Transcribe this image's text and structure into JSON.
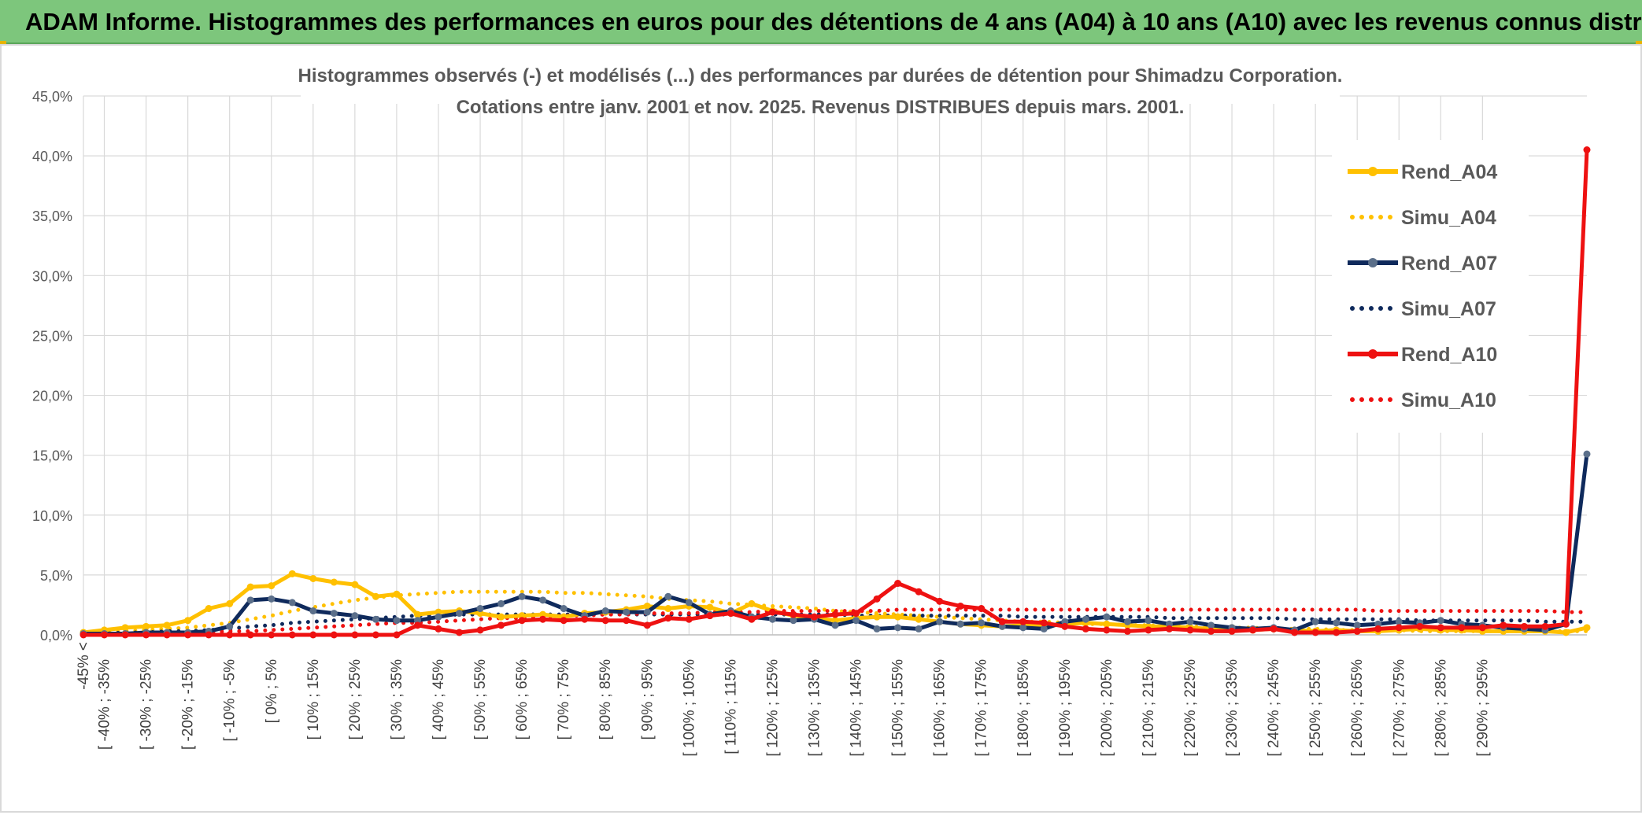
{
  "banner": {
    "title": "ADAM Informe. Histogrammes des performances en euros pour des détentions de 4 ans (A04) à 10 ans (A10) avec les revenus connus distribués"
  },
  "colors": {
    "banner_bg": "#7dc67c",
    "a04": "#ffc000",
    "a07": "#0f2a5c",
    "a10": "#ee1111",
    "grid": "#d9d9d9"
  },
  "chart_data": {
    "type": "line",
    "title_line1": "Histogrammes observés (-) et modélisés (...) des performances par durées de détention pour Shimadzu Corporation.",
    "title_line2": "Cotations entre janv. 2001 et nov. 2025. Revenus DISTRIBUES depuis mars. 2001.",
    "xlabel": "",
    "ylabel": "",
    "ylim": [
      0,
      45
    ],
    "y_ticks": [
      "0,0%",
      "5,0%",
      "10,0%",
      "15,0%",
      "20,0%",
      "25,0%",
      "30,0%",
      "35,0%",
      "40,0%",
      "45,0%"
    ],
    "grid": true,
    "legend_position": "right",
    "x_tick_labels": [
      "-45% <",
      "[ -40% ; -35%",
      "[ -30% ; -25%",
      "[ -20% ; -15%",
      "[ -10% ; -5%",
      "[ 0% ; 5%",
      "[ 10% ; 15%",
      "[ 20% ; 25%",
      "[ 30% ; 35%",
      "[ 40% ; 45%",
      "[ 50% ; 55%",
      "[ 60% ; 65%",
      "[ 70% ; 75%",
      "[ 80% ; 85%",
      "[ 90% ; 95%",
      "[ 100% ; 105%",
      "[ 110% ; 115%",
      "[ 120% ; 125%",
      "[ 130% ; 135%",
      "[ 140% ; 145%",
      "[ 150% ; 155%",
      "[ 160% ; 165%",
      "[ 170% ; 175%",
      "[ 180% ; 185%",
      "[ 190% ; 195%",
      "[ 200% ; 205%",
      "[ 210% ; 215%",
      "[ 220% ; 225%",
      "[ 230% ; 235%",
      "[ 240% ; 245%",
      "[ 250% ; 255%",
      "[ 260% ; 265%",
      "[ 270% ; 275%",
      "[ 280% ; 285%",
      "[ 290% ; 295%"
    ],
    "series": [
      {
        "name": "Rend_A04",
        "style": "solid-markers",
        "color": "#ffc000",
        "values": [
          0.2,
          0.4,
          0.6,
          0.7,
          0.8,
          1.2,
          2.2,
          2.6,
          4.0,
          4.1,
          5.1,
          4.7,
          4.4,
          4.2,
          3.2,
          3.4,
          1.7,
          1.9,
          2.0,
          1.8,
          1.5,
          1.6,
          1.7,
          1.5,
          1.8,
          1.9,
          2.1,
          2.4,
          2.2,
          2.4,
          2.3,
          1.8,
          2.6,
          2.0,
          1.6,
          1.4,
          1.2,
          1.4,
          1.5,
          1.5,
          1.3,
          1.1,
          0.9,
          0.8,
          0.7,
          0.8,
          0.7,
          0.9,
          1.0,
          0.9,
          0.8,
          0.7,
          0.7,
          0.6,
          0.5,
          0.6,
          0.4,
          0.5,
          0.4,
          0.3,
          0.4,
          0.3,
          0.3,
          0.4,
          0.5,
          0.4,
          0.4,
          0.3,
          0.3,
          0.3,
          0.3,
          0.2,
          0.6
        ]
      },
      {
        "name": "Simu_A04",
        "style": "dotted",
        "color": "#ffc000",
        "values": [
          0.1,
          0.2,
          0.3,
          0.4,
          0.5,
          0.6,
          0.8,
          1.0,
          1.3,
          1.6,
          2.0,
          2.3,
          2.6,
          2.9,
          3.1,
          3.3,
          3.4,
          3.5,
          3.6,
          3.6,
          3.6,
          3.6,
          3.6,
          3.5,
          3.5,
          3.4,
          3.3,
          3.2,
          3.0,
          2.9,
          2.8,
          2.6,
          2.5,
          2.4,
          2.3,
          2.2,
          2.0,
          1.9,
          1.8,
          1.7,
          1.6,
          1.5,
          1.4,
          1.3,
          1.2,
          1.1,
          1.1,
          1.0,
          0.9,
          0.9,
          0.8,
          0.8,
          0.7,
          0.7,
          0.6,
          0.6,
          0.6,
          0.5,
          0.5,
          0.5,
          0.4,
          0.4,
          0.4,
          0.4,
          0.3,
          0.3,
          0.3,
          0.3,
          0.3,
          0.3,
          0.3,
          0.3,
          0.3
        ]
      },
      {
        "name": "Rend_A07",
        "style": "solid-markers",
        "color": "#0f2a5c",
        "values": [
          0.1,
          0.1,
          0.1,
          0.2,
          0.2,
          0.2,
          0.3,
          0.7,
          2.9,
          3.0,
          2.7,
          2.0,
          1.8,
          1.6,
          1.3,
          1.2,
          1.2,
          1.5,
          1.8,
          2.2,
          2.6,
          3.2,
          2.9,
          2.2,
          1.6,
          2.0,
          1.9,
          1.9,
          3.2,
          2.7,
          1.7,
          2.0,
          1.5,
          1.3,
          1.2,
          1.3,
          0.8,
          1.2,
          0.5,
          0.6,
          0.5,
          1.1,
          0.9,
          1.0,
          0.7,
          0.6,
          0.5,
          1.1,
          1.3,
          1.5,
          1.1,
          1.2,
          0.9,
          1.1,
          0.8,
          0.6,
          0.5,
          0.6,
          0.4,
          1.1,
          1.0,
          0.8,
          0.9,
          1.1,
          1.0,
          1.2,
          0.9,
          0.8,
          0.6,
          0.5,
          0.4,
          0.9,
          15.1
        ]
      },
      {
        "name": "Simu_A07",
        "style": "dotted",
        "color": "#0f2a5c",
        "values": [
          0.1,
          0.1,
          0.2,
          0.2,
          0.3,
          0.3,
          0.4,
          0.5,
          0.7,
          0.8,
          1.0,
          1.1,
          1.2,
          1.3,
          1.4,
          1.5,
          1.6,
          1.6,
          1.7,
          1.7,
          1.7,
          1.7,
          1.7,
          1.7,
          1.7,
          1.7,
          1.7,
          1.7,
          1.7,
          1.7,
          1.7,
          1.7,
          1.7,
          1.7,
          1.7,
          1.7,
          1.7,
          1.6,
          1.6,
          1.6,
          1.6,
          1.6,
          1.6,
          1.6,
          1.6,
          1.5,
          1.5,
          1.5,
          1.5,
          1.5,
          1.5,
          1.5,
          1.4,
          1.4,
          1.4,
          1.4,
          1.4,
          1.4,
          1.3,
          1.3,
          1.3,
          1.3,
          1.3,
          1.3,
          1.2,
          1.2,
          1.2,
          1.2,
          1.2,
          1.2,
          1.1,
          1.1,
          1.1
        ]
      },
      {
        "name": "Rend_A10",
        "style": "solid-markers",
        "color": "#ee1111",
        "values": [
          0.0,
          0.0,
          0.0,
          0.0,
          0.0,
          0.0,
          0.0,
          0.0,
          0.0,
          0.0,
          0.0,
          0.0,
          0.0,
          0.0,
          0.0,
          0.0,
          0.8,
          0.5,
          0.2,
          0.4,
          0.8,
          1.2,
          1.3,
          1.2,
          1.3,
          1.2,
          1.2,
          0.8,
          1.4,
          1.3,
          1.6,
          1.8,
          1.3,
          1.9,
          1.7,
          1.5,
          1.7,
          1.8,
          3.0,
          4.3,
          3.6,
          2.8,
          2.4,
          2.2,
          1.1,
          1.1,
          1.0,
          0.7,
          0.5,
          0.4,
          0.3,
          0.4,
          0.5,
          0.4,
          0.3,
          0.3,
          0.4,
          0.5,
          0.2,
          0.2,
          0.2,
          0.3,
          0.5,
          0.6,
          0.7,
          0.6,
          0.6,
          0.6,
          0.8,
          0.7,
          0.7,
          0.9,
          40.5
        ]
      },
      {
        "name": "Simu_A10",
        "style": "dotted",
        "color": "#ee1111",
        "values": [
          0.0,
          0.0,
          0.1,
          0.1,
          0.1,
          0.2,
          0.2,
          0.3,
          0.3,
          0.4,
          0.5,
          0.6,
          0.7,
          0.8,
          0.9,
          1.0,
          1.0,
          1.1,
          1.2,
          1.3,
          1.4,
          1.4,
          1.5,
          1.6,
          1.6,
          1.7,
          1.7,
          1.8,
          1.8,
          1.8,
          1.9,
          1.9,
          1.9,
          2.0,
          2.0,
          2.0,
          2.0,
          2.0,
          2.0,
          2.1,
          2.1,
          2.1,
          2.1,
          2.1,
          2.1,
          2.1,
          2.1,
          2.1,
          2.1,
          2.1,
          2.1,
          2.1,
          2.1,
          2.1,
          2.1,
          2.1,
          2.1,
          2.1,
          2.1,
          2.1,
          2.1,
          2.1,
          2.0,
          2.0,
          2.0,
          2.0,
          2.0,
          2.0,
          2.0,
          2.0,
          2.0,
          1.9,
          1.9
        ]
      }
    ]
  }
}
